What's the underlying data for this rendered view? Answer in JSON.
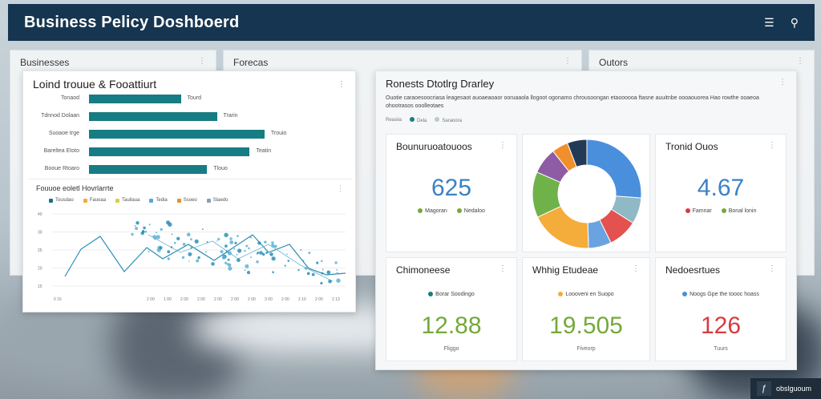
{
  "header": {
    "title": "Business Pelicy Doshboerd",
    "menu_icon": "menu-icon",
    "search_icon": "search-icon"
  },
  "background_panels": [
    {
      "title": "Businesses"
    },
    {
      "title": "Forecas"
    },
    {
      "title": "Outors"
    }
  ],
  "left_card": {
    "title": "Loind trouue & Fooattiurt",
    "bars": [
      {
        "label": "Tonaod",
        "value": 56,
        "value_label": "Tourd"
      },
      {
        "label": "Tdnnod Dolaan",
        "value": 78,
        "value_label": "Trarin"
      },
      {
        "label": "Suoaoe trge",
        "value": 107,
        "value_label": "Trouio"
      },
      {
        "label": "Bareltea Etoto",
        "value": 98,
        "value_label": "Teatin"
      },
      {
        "label": "Booue Rtoaro",
        "value": 72,
        "value_label": "Tlouo"
      }
    ],
    "line_chart": {
      "title": "Fouuoe eoletl Hovrlarrte",
      "legend": [
        "Tousdao",
        "Fauoaa",
        "Tauilaua",
        "Tedia",
        "Ssoeo",
        "Slaedo"
      ],
      "y_ticks": [
        "40",
        "30",
        "25",
        "20",
        "15"
      ],
      "x_ticks": [
        "0 15",
        "2 00",
        "1 00",
        "2 00",
        "2 00",
        "2 00",
        "2 00",
        "2 00",
        "3 00",
        "2 00",
        "2 10",
        "2 00",
        "2 13"
      ]
    }
  },
  "right_card": {
    "title": "Ronests Dtotlrg Drarley",
    "description": "Ouotie caraoesoocriasa leagesaot auoaeaoaor ooruaaola llogoot ogonamo chrousoongan etaoooooa ftasne auuitnbe oooaouorea Hao rowthe ooaeoa ohootrasos ooolleotaes",
    "legend": [
      "Reasiia",
      "Dela",
      "Saraoora"
    ],
    "tiles": [
      {
        "title": "Bounuruoatouoos",
        "value": "625",
        "legend": [
          "Magoran",
          "Nedaloo"
        ],
        "footer": ""
      },
      {
        "title": "",
        "value": "",
        "legend": [],
        "footer": ""
      },
      {
        "title": "Tronid Ouos",
        "value": "4.67",
        "legend": [
          "Famnar",
          "Bonal lonin"
        ],
        "footer": ""
      },
      {
        "title": "Chimoneese",
        "value": "12.88",
        "legend": [
          "Borar Soodingo"
        ],
        "footer": "Fliggo"
      },
      {
        "title": "Whhig Etudeae",
        "value": "19.505",
        "legend": [
          "Loooveni en Suopo"
        ],
        "footer": "Fiveorp"
      },
      {
        "title": "Nedoesrtues",
        "value": "126",
        "legend": [
          "Noogs Gpe the toooc hoass"
        ],
        "footer": "Tuurs"
      }
    ],
    "donut": {
      "slices": [
        {
          "label": "blue",
          "value": 27,
          "color": "#4a8fdc"
        },
        {
          "label": "light-blue",
          "value": 8,
          "color": "#8fb9c5"
        },
        {
          "label": "red",
          "value": 9,
          "color": "#e3524f"
        },
        {
          "label": "sky",
          "value": 7,
          "color": "#6aa3e0"
        },
        {
          "label": "orange",
          "value": 19,
          "color": "#f4ac3a"
        },
        {
          "label": "green",
          "value": 14,
          "color": "#6fb24a"
        },
        {
          "label": "purple",
          "value": 8,
          "color": "#8e5ca4"
        },
        {
          "label": "amber",
          "value": 5,
          "color": "#f08f2b"
        },
        {
          "label": "navy",
          "value": 6,
          "color": "#233a57"
        }
      ]
    }
  },
  "badge": {
    "label": "obslguoum"
  },
  "colors": {
    "header_bg": "#163550",
    "bar_color": "#177c83",
    "accent_blue": "#3b82c4",
    "accent_green": "#74a93a",
    "accent_red": "#d83a3f"
  }
}
